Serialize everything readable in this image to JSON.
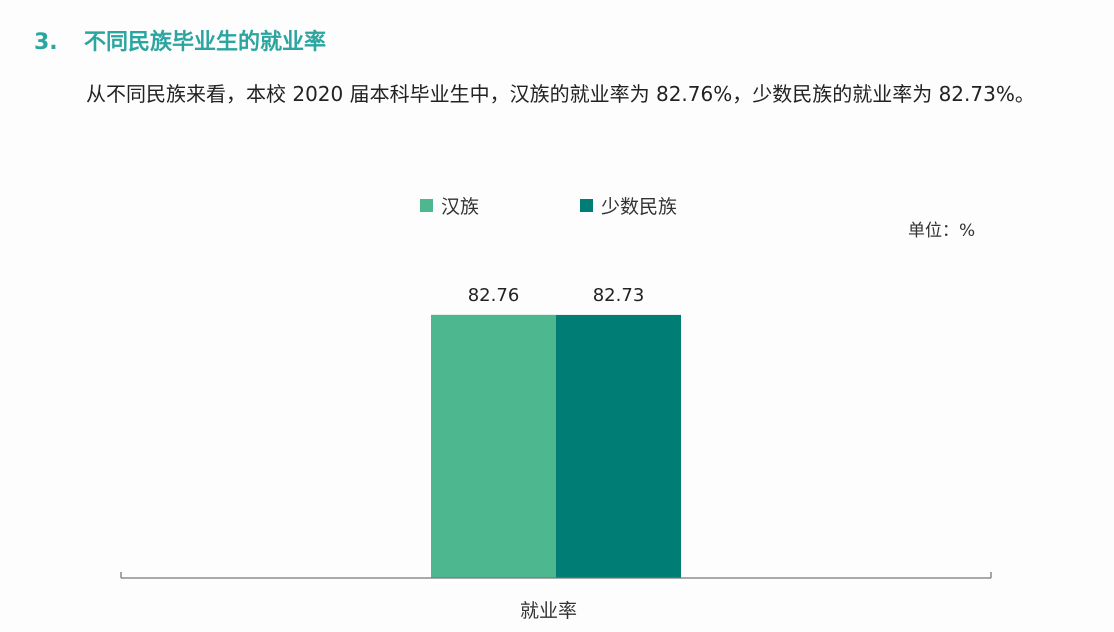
{
  "heading": {
    "number": "3.",
    "title": "不同民族毕业生的就业率"
  },
  "paragraph": "从不同民族来看，本校 2020 届本科毕业生中，汉族的就业率为 82.76%，少数民族的就业率为 82.73%。",
  "chart_data": {
    "type": "bar",
    "categories": [
      "就业率"
    ],
    "series": [
      {
        "name": "汉族",
        "values": [
          82.76
        ],
        "label": "82.76",
        "color": "#4db88f"
      },
      {
        "name": "少数民族",
        "values": [
          82.73
        ],
        "label": "82.73",
        "color": "#007d74"
      }
    ],
    "unit_label": "单位：%",
    "ylim": [
      0,
      100
    ],
    "grid": false,
    "legend": "top"
  }
}
